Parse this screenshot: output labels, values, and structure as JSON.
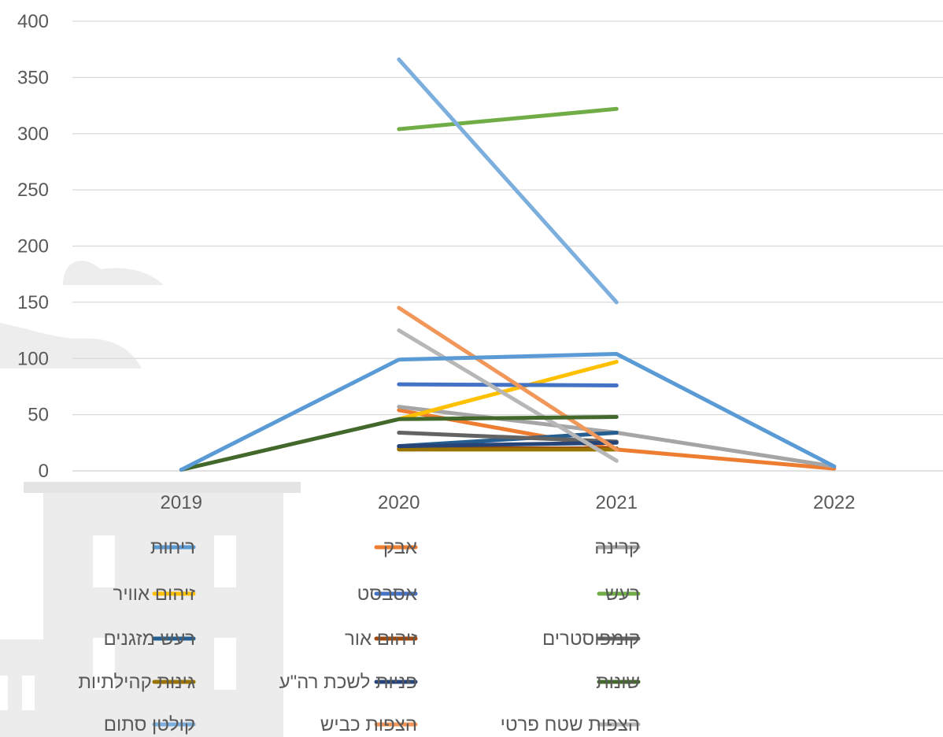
{
  "chart_data": {
    "type": "line",
    "title": "",
    "xlabel": "",
    "ylabel": "",
    "categories": [
      "2019",
      "2020",
      "2021",
      "2022"
    ],
    "ylim": [
      0,
      400
    ],
    "yticks": [
      0,
      50,
      100,
      150,
      200,
      250,
      300,
      350,
      400
    ],
    "grid": true,
    "legend_position": "bottom",
    "series": [
      {
        "name": "ריחות",
        "color": "#5B9BD5",
        "values": [
          1,
          99,
          104,
          4
        ]
      },
      {
        "name": "אבק",
        "color": "#ED7D31",
        "values": [
          null,
          54,
          19,
          2
        ]
      },
      {
        "name": "קרינה",
        "color": "#A5A5A5",
        "values": [
          null,
          57,
          34,
          4
        ]
      },
      {
        "name": "זיהום אוויר",
        "color": "#FFC000",
        "values": [
          null,
          46,
          97,
          null
        ]
      },
      {
        "name": "אסבסט",
        "color": "#4472C4",
        "values": [
          null,
          77,
          76,
          null
        ]
      },
      {
        "name": "רעש",
        "color": "#70AD47",
        "values": [
          null,
          304,
          322,
          null
        ]
      },
      {
        "name": "רעש מזגנים",
        "color": "#255E91",
        "values": [
          null,
          22,
          34,
          null
        ]
      },
      {
        "name": "זיהום אור",
        "color": "#9E480E",
        "values": [
          null,
          20,
          20,
          null
        ]
      },
      {
        "name": "קומפוסטרים",
        "color": "#636363",
        "values": [
          null,
          34,
          26,
          null
        ]
      },
      {
        "name": "גינות קהילתיות",
        "color": "#997300",
        "values": [
          null,
          19,
          19,
          null
        ]
      },
      {
        "name": "פניות לשכת רה\"ע",
        "color": "#264478",
        "values": [
          null,
          22,
          25,
          null
        ]
      },
      {
        "name": "שונות",
        "color": "#43682B",
        "values": [
          1,
          46,
          48,
          null
        ]
      },
      {
        "name": "קולטן סתום",
        "color": "#7CAFDD",
        "values": [
          null,
          366,
          150,
          null
        ]
      },
      {
        "name": "הצפות כביש",
        "color": "#F1975A",
        "values": [
          null,
          145,
          19,
          null
        ]
      },
      {
        "name": "הצפות שטח פרטי",
        "color": "#B7B7B7",
        "values": [
          null,
          125,
          9,
          null
        ]
      }
    ]
  }
}
